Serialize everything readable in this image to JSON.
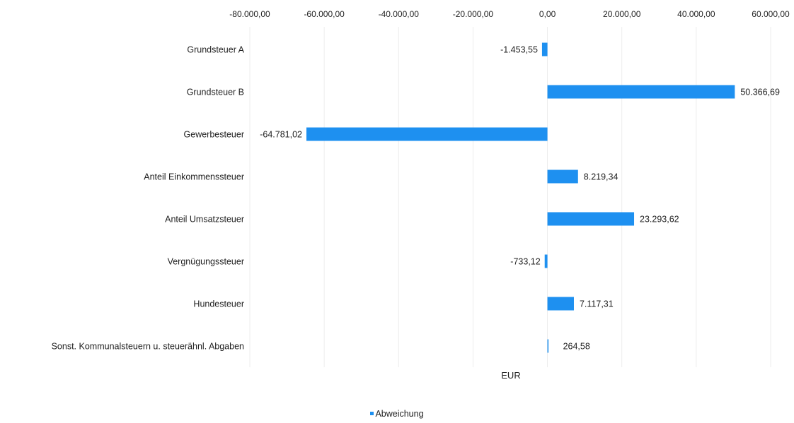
{
  "chart_data": {
    "type": "bar",
    "orientation": "horizontal",
    "categories": [
      "Grundsteuer A",
      "Grundsteuer B",
      "Gewerbesteuer",
      "Anteil Einkommenssteuer",
      "Anteil Umsatzsteuer",
      "Vergnügungssteuer",
      "Hundesteuer",
      "Sonst. Kommunalsteuern u. steuerähnl. Abgaben"
    ],
    "series": [
      {
        "name": "Abweichung",
        "color": "#1e90f0",
        "values": [
          -1453.55,
          50366.69,
          -64781.02,
          8219.34,
          23293.62,
          -733.12,
          7117.31,
          264.58
        ],
        "data_labels": [
          "-1.453,55",
          "50.366,69",
          "-64.781,02",
          "8.219,34",
          "23.293,62",
          "-733,12",
          "7.117,31",
          "264,58"
        ]
      }
    ],
    "xlabel": "EUR",
    "ylabel": "",
    "xlim": [
      -80000,
      60000
    ],
    "xticks": [
      -80000,
      -60000,
      -40000,
      -20000,
      0,
      20000,
      40000,
      60000
    ],
    "xtick_labels": [
      "-80.000,00",
      "-60.000,00",
      "-40.000,00",
      "-20.000,00",
      "0,00",
      "20.000,00",
      "40.000,00",
      "60.000,00"
    ],
    "axis_position": "top",
    "grid": true,
    "legend": "bottom-center"
  }
}
